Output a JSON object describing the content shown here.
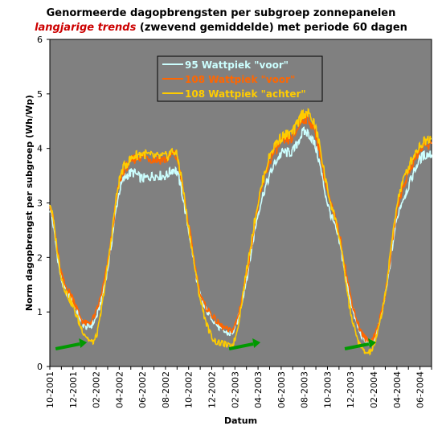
{
  "title": "Genormeerde dagopbrengsten per subgroep zonnepanelen",
  "subtitle_highlight": "langjarige trends",
  "subtitle_rest": "(zwevend gemiddelde) met periode 60 dagen",
  "colors": {
    "plot_bg": "#808080",
    "series_voor95": "#ccffff",
    "series_voor108": "#ff6600",
    "series_achter108": "#ffcc00",
    "arrow": "#009900"
  },
  "chart_data": {
    "type": "line",
    "xlabel": "Datum",
    "ylabel": "Norm dagopbrengst per subgroep (Wh/Wp)",
    "ylim": [
      0,
      6
    ],
    "yticks": [
      "0",
      "1",
      "2",
      "3",
      "4",
      "5",
      "6"
    ],
    "xtick_labels": [
      "10-2001",
      "12-2001",
      "02-2002",
      "04-2002",
      "06-2002",
      "08-2002",
      "10-2002",
      "12-2002",
      "02-2003",
      "04-2003",
      "06-2003",
      "08-2003",
      "10-2003",
      "12-2003",
      "02-2004",
      "04-2004",
      "06-2004"
    ],
    "x_month_index_range": [
      0,
      33
    ],
    "grid": false,
    "legend_position": "top-center",
    "x": [
      "10-2001",
      "11-2001",
      "12-2001",
      "01-2002",
      "02-2002",
      "03-2002",
      "04-2002",
      "05-2002",
      "06-2002",
      "07-2002",
      "08-2002",
      "09-2002",
      "10-2002",
      "11-2002",
      "12-2002",
      "01-2003",
      "02-2003",
      "03-2003",
      "04-2003",
      "05-2003",
      "06-2003",
      "07-2003",
      "08-2003",
      "09-2003",
      "10-2003",
      "11-2003",
      "12-2003",
      "01-2004",
      "02-2004",
      "03-2004",
      "04-2004",
      "05-2004",
      "06-2004",
      "07-2004"
    ],
    "series": [
      {
        "name": "95 Wattpiek \"voor\"",
        "color_key": "series_voor95",
        "values": [
          2.9,
          1.6,
          1.2,
          0.75,
          0.9,
          1.8,
          3.2,
          3.55,
          3.45,
          3.5,
          3.5,
          3.55,
          2.5,
          1.3,
          0.9,
          0.65,
          0.7,
          1.6,
          2.8,
          3.5,
          3.9,
          3.95,
          4.3,
          4.0,
          3.0,
          2.3,
          1.2,
          0.55,
          0.5,
          1.3,
          2.7,
          3.3,
          3.8,
          3.9
        ]
      },
      {
        "name": "108 Wattpiek \"voor\"",
        "color_key": "series_voor108",
        "values": [
          3.0,
          1.7,
          1.25,
          0.8,
          1.0,
          1.9,
          3.35,
          3.75,
          3.85,
          3.8,
          3.8,
          3.8,
          2.6,
          1.35,
          0.95,
          0.72,
          0.75,
          1.7,
          2.95,
          3.75,
          4.1,
          4.2,
          4.55,
          4.25,
          3.2,
          2.45,
          1.3,
          0.6,
          0.55,
          1.35,
          2.85,
          3.55,
          3.95,
          4.1
        ]
      },
      {
        "name": "108 Wattpiek \"achter\"",
        "color_key": "series_achter108",
        "values": [
          3.0,
          1.65,
          1.1,
          0.6,
          0.55,
          1.85,
          3.4,
          3.8,
          3.9,
          3.85,
          3.85,
          3.85,
          2.55,
          1.25,
          0.55,
          0.42,
          0.5,
          1.75,
          3.0,
          3.85,
          4.2,
          4.3,
          4.65,
          4.35,
          3.25,
          2.4,
          1.0,
          0.32,
          0.38,
          1.35,
          2.95,
          3.65,
          4.05,
          4.2
        ]
      }
    ],
    "arrows_near_month_index": [
      0.5,
      15.5,
      25.5
    ]
  }
}
